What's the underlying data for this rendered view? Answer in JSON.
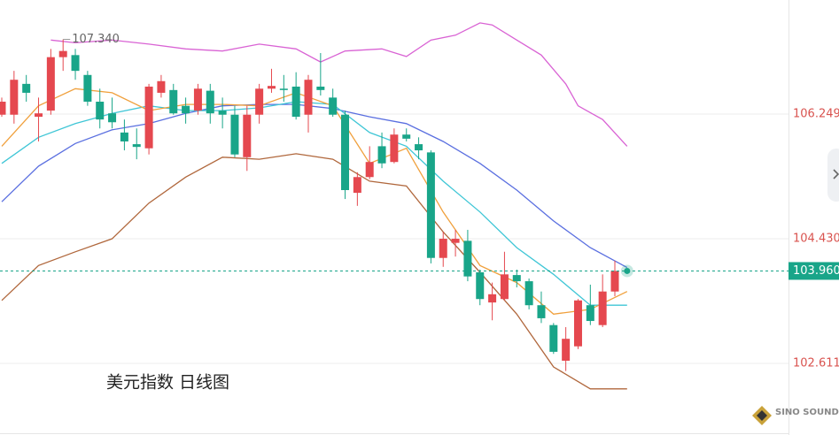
{
  "chart_data": {
    "type": "candlestick",
    "title": "美元指数 日线图",
    "watermark": "SINO SOUND",
    "up_color": "#e5484f",
    "down_color": "#19a589",
    "ylim": [
      101.566,
      107.914
    ],
    "yticks": [
      102.611,
      {
        "value": 104.43,
        "label": "104.430"
      },
      106.249
    ],
    "grid": true,
    "ohlc": [
      [
        106.24,
        106.49,
        106.21,
        106.43
      ],
      [
        106.24,
        106.88,
        106.11,
        106.75
      ],
      [
        106.69,
        106.82,
        106.43,
        106.56
      ],
      [
        106.21,
        106.49,
        105.85,
        106.26
      ],
      [
        106.3,
        107.2,
        106.24,
        107.08
      ],
      [
        107.08,
        107.34,
        106.88,
        107.17
      ],
      [
        107.11,
        107.2,
        106.75,
        106.88
      ],
      [
        106.82,
        106.88,
        106.37,
        106.43
      ],
      [
        106.43,
        106.62,
        106.04,
        106.17
      ],
      [
        106.26,
        106.49,
        106.04,
        106.13
      ],
      [
        105.98,
        106.17,
        105.72,
        105.85
      ],
      [
        105.81,
        106.04,
        105.59,
        105.77
      ],
      [
        105.75,
        106.69,
        105.66,
        106.65
      ],
      [
        106.56,
        106.82,
        106.49,
        106.73
      ],
      [
        106.6,
        106.69,
        106.24,
        106.26
      ],
      [
        106.37,
        106.49,
        106.11,
        106.26
      ],
      [
        106.3,
        106.69,
        106.24,
        106.62
      ],
      [
        106.59,
        106.69,
        106.11,
        106.26
      ],
      [
        106.3,
        106.49,
        106.04,
        106.24
      ],
      [
        106.24,
        106.37,
        105.62,
        105.66
      ],
      [
        105.62,
        106.37,
        105.42,
        106.24
      ],
      [
        106.24,
        106.69,
        106.11,
        106.62
      ],
      [
        106.62,
        106.91,
        106.56,
        106.66
      ],
      [
        106.62,
        106.82,
        106.43,
        106.6
      ],
      [
        106.65,
        106.86,
        106.17,
        106.21
      ],
      [
        106.24,
        106.82,
        105.98,
        106.75
      ],
      [
        106.65,
        107.14,
        106.52,
        106.6
      ],
      [
        106.49,
        106.62,
        106.21,
        106.24
      ],
      [
        106.24,
        106.3,
        105.01,
        105.14
      ],
      [
        105.1,
        105.4,
        104.91,
        105.33
      ],
      [
        105.33,
        105.78,
        105.3,
        105.55
      ],
      [
        105.78,
        105.98,
        105.46,
        105.53
      ],
      [
        105.55,
        106.04,
        105.53,
        105.95
      ],
      [
        105.95,
        106.04,
        105.85,
        105.89
      ],
      [
        105.81,
        105.91,
        105.59,
        105.72
      ],
      [
        105.69,
        105.72,
        104.07,
        104.15
      ],
      [
        104.15,
        104.53,
        104.02,
        104.43
      ],
      [
        104.37,
        104.56,
        104.17,
        104.43
      ],
      [
        104.4,
        104.56,
        103.81,
        103.88
      ],
      [
        103.94,
        103.98,
        103.46,
        103.55
      ],
      [
        103.5,
        103.79,
        103.24,
        103.62
      ],
      [
        103.55,
        104.24,
        103.53,
        103.91
      ],
      [
        103.9,
        103.98,
        103.72,
        103.81
      ],
      [
        103.81,
        103.85,
        103.4,
        103.46
      ],
      [
        103.46,
        103.66,
        103.2,
        103.27
      ],
      [
        103.17,
        103.2,
        102.75,
        102.78
      ],
      [
        102.65,
        103.14,
        102.5,
        102.97
      ],
      [
        102.86,
        103.55,
        102.82,
        103.53
      ],
      [
        103.46,
        103.76,
        103.17,
        103.23
      ],
      [
        103.17,
        103.91,
        103.14,
        103.66
      ],
      [
        103.66,
        104.11,
        103.59,
        103.96
      ]
    ],
    "series": [
      {
        "color": "#d963d4",
        "x": [
          4,
          6,
          9,
          12,
          15,
          18,
          21,
          24,
          26,
          28,
          31,
          33,
          35,
          37,
          39,
          40,
          42,
          44,
          46,
          47,
          49,
          51
        ],
        "values": [
          107.33,
          107.29,
          107.33,
          107.27,
          107.2,
          107.17,
          107.27,
          107.2,
          107.01,
          107.17,
          107.2,
          107.09,
          107.33,
          107.4,
          107.58,
          107.55,
          107.33,
          107.11,
          106.69,
          106.37,
          106.17,
          105.78
        ]
      },
      {
        "color": "#5a6fe0",
        "x": [
          0,
          3,
          6,
          9,
          12,
          15,
          18,
          21,
          24,
          27,
          30,
          33,
          36,
          39,
          42,
          45,
          48,
          51
        ],
        "values": [
          104.97,
          105.49,
          105.82,
          106.02,
          106.11,
          106.26,
          106.37,
          106.39,
          106.39,
          106.33,
          106.21,
          106.11,
          105.85,
          105.53,
          105.14,
          104.69,
          104.3,
          104.01
        ]
      },
      {
        "color": "#3fc6d6",
        "x": [
          0,
          3,
          6,
          9,
          12,
          15,
          18,
          21,
          24,
          27,
          30,
          33,
          36,
          39,
          42,
          45,
          48,
          51
        ],
        "values": [
          105.53,
          105.91,
          106.11,
          106.26,
          106.37,
          106.3,
          106.3,
          106.34,
          106.43,
          106.39,
          105.98,
          105.78,
          105.27,
          104.82,
          104.3,
          103.91,
          103.46,
          103.46
        ]
      },
      {
        "color": "#f0a03c",
        "x": [
          0,
          3,
          6,
          9,
          12,
          15,
          18,
          21,
          24,
          27,
          30,
          33,
          36,
          39,
          42,
          45,
          48,
          51
        ],
        "values": [
          105.78,
          106.37,
          106.62,
          106.56,
          106.3,
          106.39,
          106.39,
          106.37,
          106.56,
          106.37,
          105.53,
          105.75,
          104.82,
          104.04,
          103.79,
          103.33,
          103.4,
          103.66
        ]
      },
      {
        "color": "#b0673c",
        "x": [
          0,
          3,
          6,
          9,
          12,
          15,
          18,
          21,
          24,
          27,
          30,
          33,
          36,
          39,
          42,
          45,
          48,
          51
        ],
        "values": [
          103.53,
          104.04,
          104.24,
          104.43,
          104.95,
          105.33,
          105.62,
          105.59,
          105.67,
          105.59,
          105.27,
          105.2,
          104.53,
          103.94,
          103.33,
          102.56,
          102.24,
          102.24
        ]
      }
    ],
    "high_label": {
      "value": 107.34,
      "label": "107.340"
    },
    "last_price": {
      "value": 103.96,
      "label": "103.960"
    }
  }
}
